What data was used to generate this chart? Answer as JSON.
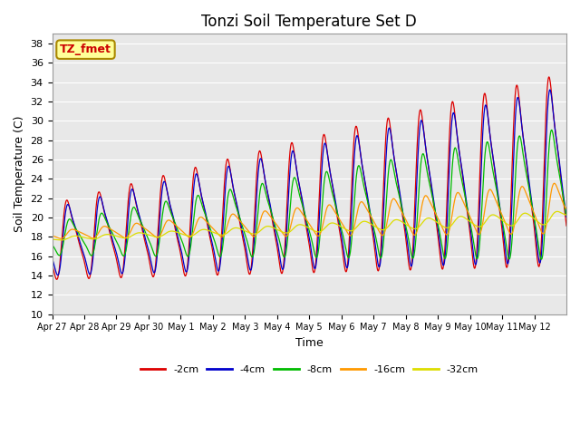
{
  "title": "Tonzi Soil Temperature Set D",
  "xlabel": "Time",
  "ylabel": "Soil Temperature (C)",
  "ylim": [
    10,
    39
  ],
  "yticks": [
    10,
    12,
    14,
    16,
    18,
    20,
    22,
    24,
    26,
    28,
    30,
    32,
    34,
    36,
    38
  ],
  "legend_labels": [
    "-2cm",
    "-4cm",
    "-8cm",
    "-16cm",
    "-32cm"
  ],
  "legend_colors": [
    "#dd0000",
    "#0000cc",
    "#00bb00",
    "#ff9900",
    "#dddd00"
  ],
  "annotation_text": "TZ_fmet",
  "annotation_box_facecolor": "#ffff99",
  "annotation_box_edgecolor": "#aa8800",
  "x_tick_labels": [
    "Apr 27",
    "Apr 28",
    "Apr 29",
    "Apr 30",
    "May 1",
    "May 2",
    "May 3",
    "May 4",
    "May 5",
    "May 6",
    "May 7",
    "May 8",
    "May 9",
    "May 10",
    "May 11",
    "May 12"
  ],
  "figsize": [
    6.4,
    4.8
  ],
  "dpi": 100
}
